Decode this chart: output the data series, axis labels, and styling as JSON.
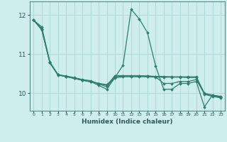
{
  "xlabel": "Humidex (Indice chaleur)",
  "ylabel": "",
  "background_color": "#ceeeed",
  "grid_color": "#b0d8d8",
  "line_color": "#2e7d6e",
  "xlim": [
    -0.5,
    23.5
  ],
  "ylim": [
    9.55,
    12.35
  ],
  "yticks": [
    10,
    11,
    12
  ],
  "xticks": [
    0,
    1,
    2,
    3,
    4,
    5,
    6,
    7,
    8,
    9,
    10,
    11,
    12,
    13,
    14,
    15,
    16,
    17,
    18,
    19,
    20,
    21,
    22,
    23
  ],
  "series": [
    [
      11.87,
      11.7,
      10.8,
      10.48,
      10.43,
      10.38,
      10.33,
      10.3,
      10.25,
      10.2,
      10.45,
      10.45,
      10.45,
      10.45,
      10.44,
      10.43,
      10.43,
      10.42,
      10.42,
      10.42,
      10.42,
      10.0,
      9.95,
      9.92
    ],
    [
      11.87,
      11.65,
      10.78,
      10.46,
      10.43,
      10.38,
      10.33,
      10.3,
      10.2,
      10.1,
      10.4,
      10.72,
      12.15,
      11.9,
      11.55,
      10.7,
      10.1,
      10.1,
      10.25,
      10.25,
      10.3,
      9.65,
      9.95,
      9.9
    ],
    [
      11.87,
      11.65,
      10.79,
      10.47,
      10.44,
      10.4,
      10.35,
      10.32,
      10.24,
      10.16,
      10.42,
      10.44,
      10.44,
      10.44,
      10.44,
      10.42,
      10.25,
      10.25,
      10.3,
      10.3,
      10.35,
      9.98,
      9.93,
      9.9
    ],
    [
      11.87,
      11.62,
      10.78,
      10.47,
      10.42,
      10.38,
      10.34,
      10.29,
      10.25,
      10.22,
      10.39,
      10.42,
      10.42,
      10.42,
      10.42,
      10.41,
      10.41,
      10.41,
      10.41,
      10.4,
      10.4,
      9.97,
      9.92,
      9.88
    ]
  ]
}
